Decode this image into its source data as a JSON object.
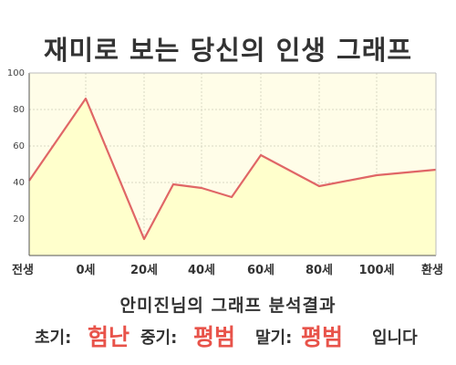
{
  "title": "재미로 보는 당신의 인생 그래프",
  "chart_data": {
    "type": "area",
    "x_labels": [
      "전생",
      "0세",
      "20세",
      "40세",
      "60세",
      "80세",
      "100세",
      "환생"
    ],
    "points": [
      {
        "x": "전생",
        "y": 41
      },
      {
        "x": "0세",
        "y": 86
      },
      {
        "x": "20세",
        "y": 9
      },
      {
        "x": "30세",
        "y": 39
      },
      {
        "x": "40세",
        "y": 37
      },
      {
        "x": "50세",
        "y": 32
      },
      {
        "x": "60세",
        "y": 55
      },
      {
        "x": "80세",
        "y": 38
      },
      {
        "x": "100세",
        "y": 44
      },
      {
        "x": "환생",
        "y": 47
      }
    ],
    "y_ticks": [
      "100",
      "80",
      "60",
      "40",
      "20"
    ],
    "ylim": [
      0,
      100
    ],
    "grid": true,
    "colors": {
      "line": "#e06666",
      "fill": "#ffffcc",
      "plot_bg": "#fffde8"
    }
  },
  "result": {
    "heading": "안미진님의 그래프 분석결과",
    "early_label": "초기:",
    "early_value": "험난",
    "middle_label": "중기:",
    "middle_value": "평범",
    "late_label": "말기:",
    "late_value": "평범",
    "suffix": "입니다"
  }
}
